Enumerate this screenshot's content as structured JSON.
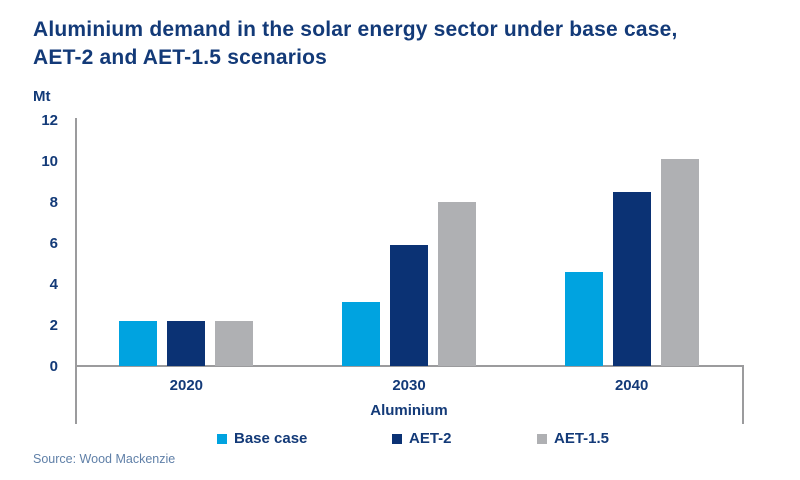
{
  "header": {
    "title_lines": [
      "Aluminium demand in the solar energy sector under base case,",
      "AET-2 and AET-1.5 scenarios"
    ]
  },
  "chart_data": {
    "type": "bar",
    "title": "Aluminium demand in the solar energy sector under base case, AET-2 and AET-1.5 scenarios",
    "unit_label": "Mt",
    "xlabel": "Aluminium",
    "categories": [
      "2020",
      "2030",
      "2040"
    ],
    "series": [
      {
        "name": "Base case",
        "color": "#00A3E0",
        "values": [
          2.2,
          3.1,
          4.6
        ]
      },
      {
        "name": "AET-2",
        "color": "#0B3274",
        "values": [
          2.2,
          5.9,
          8.5
        ]
      },
      {
        "name": "AET-1.5",
        "color": "#AFB0B3",
        "values": [
          2.2,
          8.0,
          10.1
        ]
      }
    ],
    "ylim": [
      0,
      12
    ],
    "yticks": [
      0,
      2,
      4,
      6,
      8,
      10,
      12
    ],
    "grid": false,
    "legend_position": "bottom"
  },
  "footer": {
    "source": "Source: Wood Mackenzie"
  },
  "colors": {
    "navy_text": "#133A78",
    "axis_gray": "#9B9B9D",
    "source_blue": "#6080A8"
  }
}
